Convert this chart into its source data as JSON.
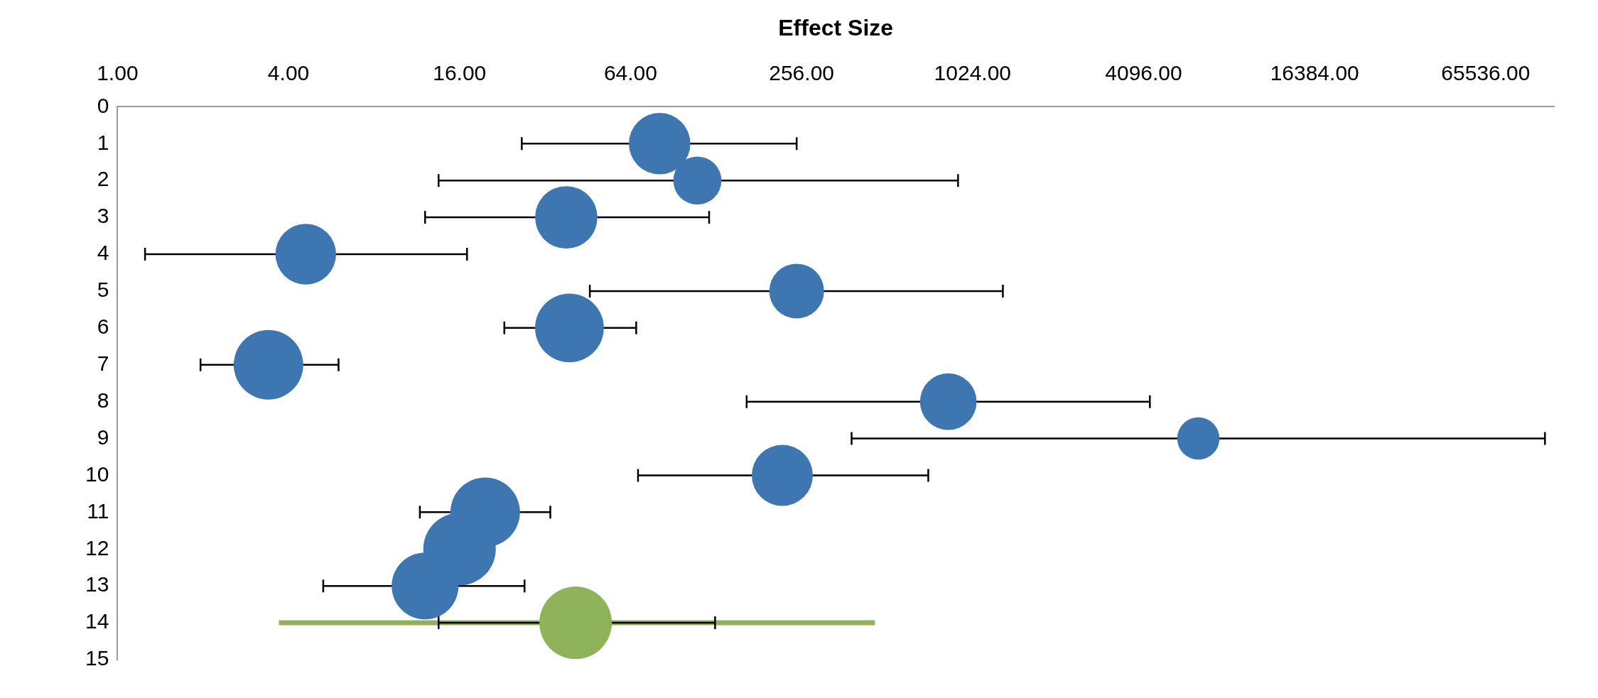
{
  "chart_data": {
    "type": "bubble",
    "xlabel": "Effect Size",
    "log": "x",
    "xlim": [
      1,
      114000
    ],
    "xticks": [
      {
        "value": 1,
        "label": "1.00"
      },
      {
        "value": 4,
        "label": "4.00"
      },
      {
        "value": 16,
        "label": "16.00"
      },
      {
        "value": 64,
        "label": "64.00"
      },
      {
        "value": 256,
        "label": "256.00"
      },
      {
        "value": 1024,
        "label": "1024.00"
      },
      {
        "value": 4096,
        "label": "4096.00"
      },
      {
        "value": 16384,
        "label": "16384.00"
      },
      {
        "value": 65536,
        "label": "65536.00"
      }
    ],
    "ylim": [
      15,
      0
    ],
    "yticks": [
      0,
      1,
      2,
      3,
      4,
      5,
      6,
      7,
      8,
      9,
      10,
      11,
      12,
      13,
      14,
      15
    ],
    "grid": false,
    "legend": false,
    "marker": "circle",
    "series": [
      {
        "type": "line",
        "marker": "none",
        "color": "#8fb35a",
        "x": [
          3.7,
          464
        ],
        "values": [
          14,
          14
        ]
      },
      {
        "color": "#3d76b0",
        "x": [
          81,
          110,
          38,
          4.6,
          246,
          39,
          3.4,
          841,
          6383,
          219,
          19.7,
          16,
          12.1
        ],
        "values": [
          1,
          2,
          3,
          4,
          5,
          6,
          7,
          8,
          9,
          10,
          11,
          12,
          13
        ],
        "sizes": [
          0.72,
          0.44,
          0.74,
          0.7,
          0.57,
          0.9,
          0.92,
          0.61,
          0.34,
          0.71,
          0.92,
          1,
          0.85
        ],
        "xerrors": [
          [
            26.5,
            246
          ],
          [
            13.5,
            910
          ],
          [
            12.1,
            121
          ],
          [
            1.25,
            17
          ],
          [
            46,
            1309
          ],
          [
            23,
            67
          ],
          [
            1.96,
            6
          ],
          [
            164,
            4309
          ],
          [
            384,
            106000
          ],
          [
            68,
            715
          ],
          [
            11.6,
            33.4
          ],
          null,
          [
            5.3,
            27.1
          ]
        ]
      },
      {
        "color": "#8fb35a",
        "x": [
          41
        ],
        "values": [
          14
        ],
        "sizes": [
          1
        ],
        "xerrors": [
          [
            13.5,
            127
          ]
        ]
      }
    ]
  }
}
